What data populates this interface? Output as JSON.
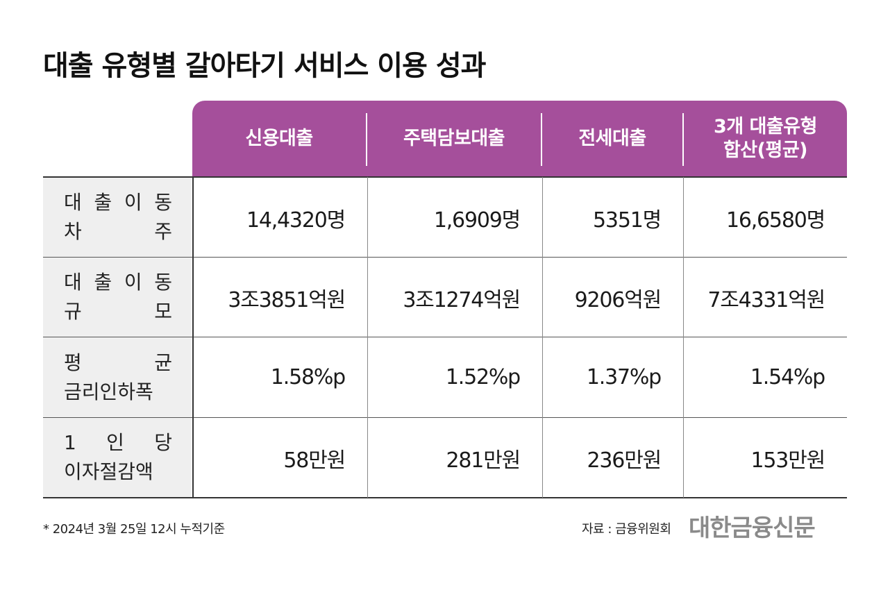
{
  "title": "대출 유형별 갈아타기 서비스 이용 성과",
  "columns": [
    "신용대출",
    "주택담보대출",
    "전세대출",
    "3개 대출유형",
    "합산(평균)"
  ],
  "rows": [
    {
      "label_line1": "대 출 이 동",
      "label_line2": "차 주",
      "values": [
        "14,4320명",
        "1,6909명",
        "5351명",
        "16,6580명"
      ]
    },
    {
      "label_line1": "대 출 이 동",
      "label_line2": "규 모",
      "values": [
        "3조3851억원",
        "3조1274억원",
        "9206억원",
        "7조4331억원"
      ]
    },
    {
      "label_line1": "평 균",
      "label_line2": "금리인하폭",
      "values": [
        "1.58%p",
        "1.52%p",
        "1.37%p",
        "1.54%p"
      ]
    },
    {
      "label_line1": "1 인 당",
      "label_line2": "이자절감액",
      "values": [
        "58만원",
        "281만원",
        "236만원",
        "153만원"
      ]
    }
  ],
  "footnote": "* 2024년 3월 25일 12시 누적기준",
  "source": "자료 : 금융위원회",
  "brand": "대한금융신문",
  "colors": {
    "header_bg": "#a54f9b",
    "label_bg": "#efefef",
    "brand_gray": "#8a8a8a"
  }
}
